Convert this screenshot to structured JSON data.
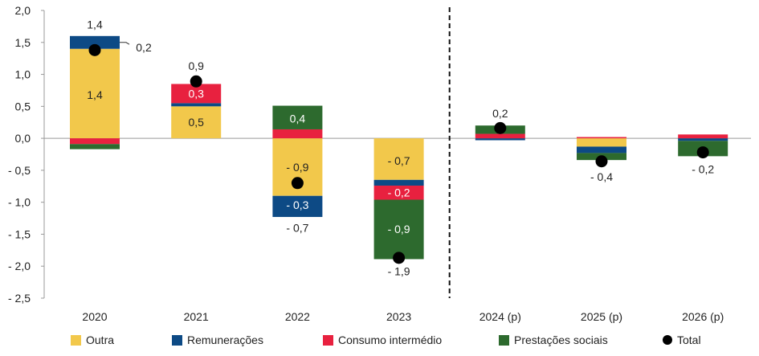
{
  "chart_data": {
    "type": "bar",
    "stacked": true,
    "categories": [
      "2020",
      "2021",
      "2022",
      "2023",
      "2024 (p)",
      "2025 (p)",
      "2026 (p)"
    ],
    "ylim": [
      -2.5,
      2.0
    ],
    "yticks": [
      "2,0",
      "1,5",
      "1,0",
      "0,5",
      "0,0",
      "- 0,5",
      "- 1,0",
      "- 1,5",
      "- 2,0",
      "- 2,5"
    ],
    "ytick_values": [
      2.0,
      1.5,
      1.0,
      0.5,
      0.0,
      -0.5,
      -1.0,
      -1.5,
      -2.0,
      -2.5
    ],
    "forecast_divider_after": "2023",
    "series": [
      {
        "name": "Outra",
        "color": "#F2C84B",
        "values": [
          1.4,
          0.5,
          -0.9,
          -0.65,
          0.0,
          -0.13,
          0.0
        ]
      },
      {
        "name": "Remunerações",
        "color": "#0D4A85",
        "values": [
          0.2,
          0.05,
          -0.33,
          -0.09,
          -0.03,
          -0.1,
          -0.04
        ]
      },
      {
        "name": "Consumo intermédio",
        "color": "#E8213F",
        "values": [
          -0.09,
          0.3,
          0.14,
          -0.22,
          0.07,
          0.02,
          0.06
        ]
      },
      {
        "name": "Prestações sociais",
        "color": "#2D6A2E",
        "values": [
          -0.08,
          0.0,
          0.37,
          -0.93,
          0.13,
          -0.11,
          -0.24
        ]
      }
    ],
    "total": {
      "name": "Total",
      "values": [
        1.38,
        0.89,
        -0.7,
        -1.87,
        0.16,
        -0.36,
        -0.22
      ]
    },
    "data_labels": [
      {
        "text": "1,4",
        "category": 0,
        "y": 1.78,
        "color": "#222"
      },
      {
        "text": "1,4",
        "category": 0,
        "y": 0.68,
        "color": "#222"
      },
      {
        "text": "0,2",
        "category": 0,
        "y": 1.42,
        "color": "#222",
        "offset": "right"
      },
      {
        "text": "0,9",
        "category": 1,
        "y": 1.13,
        "color": "#222"
      },
      {
        "text": "0,3",
        "category": 1,
        "y": 0.7,
        "color": "#fff"
      },
      {
        "text": "0,5",
        "category": 1,
        "y": 0.25,
        "color": "#222"
      },
      {
        "text": "0,4",
        "category": 2,
        "y": 0.31,
        "color": "#fff"
      },
      {
        "text": "- 0,9",
        "category": 2,
        "y": -0.45,
        "color": "#222"
      },
      {
        "text": "- 0,3",
        "category": 2,
        "y": -1.04,
        "color": "#fff"
      },
      {
        "text": "- 0,7",
        "category": 2,
        "y": -1.4,
        "color": "#222"
      },
      {
        "text": "- 0,7",
        "category": 3,
        "y": -0.35,
        "color": "#222"
      },
      {
        "text": "- 0,2",
        "category": 3,
        "y": -0.85,
        "color": "#fff"
      },
      {
        "text": "- 0,9",
        "category": 3,
        "y": -1.42,
        "color": "#fff"
      },
      {
        "text": "- 1,9",
        "category": 3,
        "y": -2.08,
        "color": "#222"
      },
      {
        "text": "0,2",
        "category": 4,
        "y": 0.39,
        "color": "#222"
      },
      {
        "text": "- 0,4",
        "category": 5,
        "y": -0.6,
        "color": "#222"
      },
      {
        "text": "- 0,2",
        "category": 6,
        "y": -0.48,
        "color": "#222"
      }
    ],
    "legend": {
      "position": "bottom"
    },
    "grid": false
  }
}
